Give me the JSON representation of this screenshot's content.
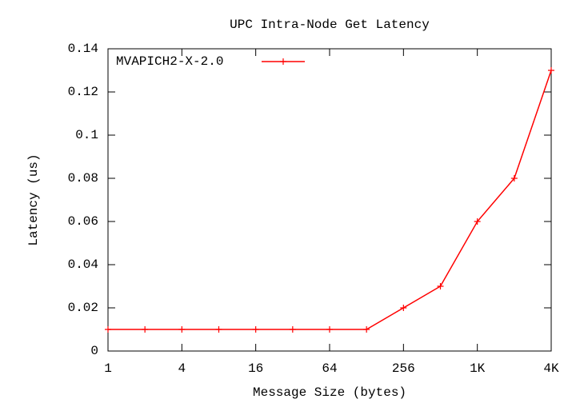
{
  "chart_data": {
    "type": "line",
    "title": "UPC Intra-Node Get Latency",
    "x_label": "Message Size (bytes)",
    "y_label": "Latency (us)",
    "x": [
      1,
      2,
      4,
      8,
      16,
      32,
      64,
      128,
      256,
      512,
      1024,
      2048,
      4096
    ],
    "series": [
      {
        "name": "MVAPICH2-X-2.0",
        "color": "#ff0000",
        "values": [
          0.01,
          0.01,
          0.01,
          0.01,
          0.01,
          0.01,
          0.01,
          0.01,
          0.02,
          0.03,
          0.06,
          0.08,
          0.13
        ]
      }
    ],
    "x_log_base": 2,
    "xlim": [
      1,
      4096
    ],
    "xticks": [
      1,
      4,
      16,
      64,
      256,
      {
        "value": 1024,
        "label": "1K"
      },
      {
        "value": 4096,
        "label": "4K"
      }
    ],
    "ylim": [
      0,
      0.14
    ],
    "yticks": [
      0,
      0.02,
      0.04,
      0.06,
      0.08,
      0.1,
      0.12,
      0.14
    ],
    "legend": "top-left"
  }
}
